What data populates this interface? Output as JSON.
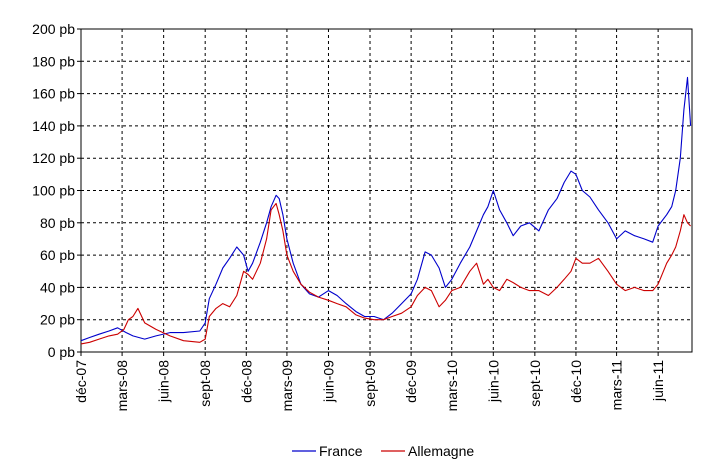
{
  "chart_data": {
    "type": "line",
    "title": "",
    "xlabel": "",
    "ylabel": "",
    "ylim": [
      0,
      200
    ],
    "y_ticks": [
      "0 pb",
      "20 pb",
      "40 pb",
      "60 pb",
      "80 pb",
      "100 pb",
      "120 pb",
      "140 pb",
      "160 pb",
      "180 pb",
      "200 pb"
    ],
    "x_ticks": [
      "déc-07",
      "mars-08",
      "juin-08",
      "sept-08",
      "déc-08",
      "mars-09",
      "juin-09",
      "sept-09",
      "déc-09",
      "mars-10",
      "juin-10",
      "sept-10",
      "déc-10",
      "mars-11",
      "juin-11"
    ],
    "xlim": [
      "2007-12-01",
      "2011-08-15"
    ],
    "grid": true,
    "legend_position": "bottom",
    "series": [
      {
        "name": "France",
        "color": "#0000CC",
        "x": [
          "2007-12-01",
          "2007-12-20",
          "2008-01-10",
          "2008-02-01",
          "2008-02-20",
          "2008-03-10",
          "2008-03-25",
          "2008-04-20",
          "2008-05-15",
          "2008-06-15",
          "2008-07-15",
          "2008-08-20",
          "2008-09-01",
          "2008-09-10",
          "2008-09-25",
          "2008-10-10",
          "2008-10-25",
          "2008-11-10",
          "2008-11-25",
          "2008-12-05",
          "2008-12-15",
          "2009-01-01",
          "2009-01-15",
          "2009-01-25",
          "2009-02-05",
          "2009-02-12",
          "2009-02-20",
          "2009-03-01",
          "2009-03-15",
          "2009-04-01",
          "2009-04-20",
          "2009-05-10",
          "2009-06-01",
          "2009-06-20",
          "2009-07-10",
          "2009-08-01",
          "2009-08-20",
          "2009-09-10",
          "2009-10-01",
          "2009-10-20",
          "2009-11-10",
          "2009-12-01",
          "2009-12-15",
          "2010-01-01",
          "2010-01-15",
          "2010-02-01",
          "2010-02-15",
          "2010-03-01",
          "2010-03-20",
          "2010-04-10",
          "2010-04-25",
          "2010-05-10",
          "2010-05-20",
          "2010-06-01",
          "2010-06-15",
          "2010-07-01",
          "2010-07-15",
          "2010-08-01",
          "2010-08-20",
          "2010-09-10",
          "2010-10-01",
          "2010-10-20",
          "2010-11-05",
          "2010-11-20",
          "2010-12-01",
          "2010-12-15",
          "2011-01-01",
          "2011-01-20",
          "2011-02-10",
          "2011-03-01",
          "2011-03-20",
          "2011-04-10",
          "2011-05-01",
          "2011-05-20",
          "2011-06-01",
          "2011-06-20",
          "2011-07-01",
          "2011-07-10",
          "2011-07-20",
          "2011-07-28",
          "2011-08-05",
          "2011-08-12"
        ],
        "values": [
          7,
          9,
          11,
          13,
          15,
          12,
          10,
          8,
          10,
          12,
          12,
          13,
          18,
          33,
          42,
          52,
          58,
          65,
          60,
          50,
          55,
          68,
          80,
          90,
          97,
          95,
          85,
          70,
          55,
          42,
          36,
          34,
          38,
          35,
          30,
          25,
          22,
          22,
          20,
          24,
          30,
          36,
          45,
          62,
          60,
          52,
          40,
          45,
          55,
          65,
          75,
          85,
          90,
          100,
          88,
          80,
          72,
          78,
          80,
          75,
          88,
          95,
          105,
          112,
          110,
          100,
          96,
          88,
          80,
          70,
          75,
          72,
          70,
          68,
          78,
          85,
          90,
          100,
          120,
          150,
          170,
          140
        ]
      },
      {
        "name": "Allemagne",
        "color": "#CC0000",
        "x": [
          "2007-12-01",
          "2007-12-20",
          "2008-01-10",
          "2008-02-01",
          "2008-02-20",
          "2008-03-05",
          "2008-03-15",
          "2008-03-25",
          "2008-04-05",
          "2008-04-20",
          "2008-05-15",
          "2008-06-15",
          "2008-07-15",
          "2008-08-20",
          "2008-09-01",
          "2008-09-10",
          "2008-09-25",
          "2008-10-10",
          "2008-10-25",
          "2008-11-10",
          "2008-11-25",
          "2008-12-05",
          "2008-12-15",
          "2009-01-01",
          "2009-01-15",
          "2009-01-25",
          "2009-02-05",
          "2009-02-12",
          "2009-02-20",
          "2009-03-01",
          "2009-03-15",
          "2009-04-01",
          "2009-04-20",
          "2009-05-10",
          "2009-06-01",
          "2009-06-20",
          "2009-07-10",
          "2009-08-01",
          "2009-08-20",
          "2009-09-10",
          "2009-10-01",
          "2009-10-20",
          "2009-11-10",
          "2009-12-01",
          "2009-12-15",
          "2010-01-01",
          "2010-01-15",
          "2010-02-01",
          "2010-02-15",
          "2010-03-01",
          "2010-03-20",
          "2010-04-10",
          "2010-04-25",
          "2010-05-10",
          "2010-05-20",
          "2010-06-01",
          "2010-06-15",
          "2010-07-01",
          "2010-07-15",
          "2010-08-01",
          "2010-08-20",
          "2010-09-10",
          "2010-10-01",
          "2010-10-20",
          "2010-11-05",
          "2010-11-20",
          "2010-12-01",
          "2010-12-15",
          "2011-01-01",
          "2011-01-20",
          "2011-02-10",
          "2011-03-01",
          "2011-03-20",
          "2011-04-10",
          "2011-05-01",
          "2011-05-20",
          "2011-06-01",
          "2011-06-20",
          "2011-07-01",
          "2011-07-10",
          "2011-07-20",
          "2011-07-28",
          "2011-08-05",
          "2011-08-12"
        ],
        "values": [
          5,
          6,
          8,
          10,
          11,
          14,
          20,
          22,
          27,
          18,
          14,
          10,
          7,
          6,
          8,
          22,
          27,
          30,
          28,
          35,
          50,
          48,
          45,
          55,
          70,
          88,
          92,
          85,
          75,
          60,
          50,
          42,
          37,
          34,
          32,
          30,
          28,
          23,
          21,
          20,
          20,
          22,
          24,
          28,
          35,
          40,
          38,
          28,
          32,
          38,
          40,
          50,
          55,
          42,
          45,
          40,
          38,
          45,
          43,
          40,
          38,
          38,
          35,
          40,
          45,
          50,
          58,
          55,
          55,
          58,
          50,
          42,
          38,
          40,
          38,
          38,
          42,
          55,
          60,
          65,
          75,
          85,
          80,
          78
        ]
      }
    ]
  }
}
